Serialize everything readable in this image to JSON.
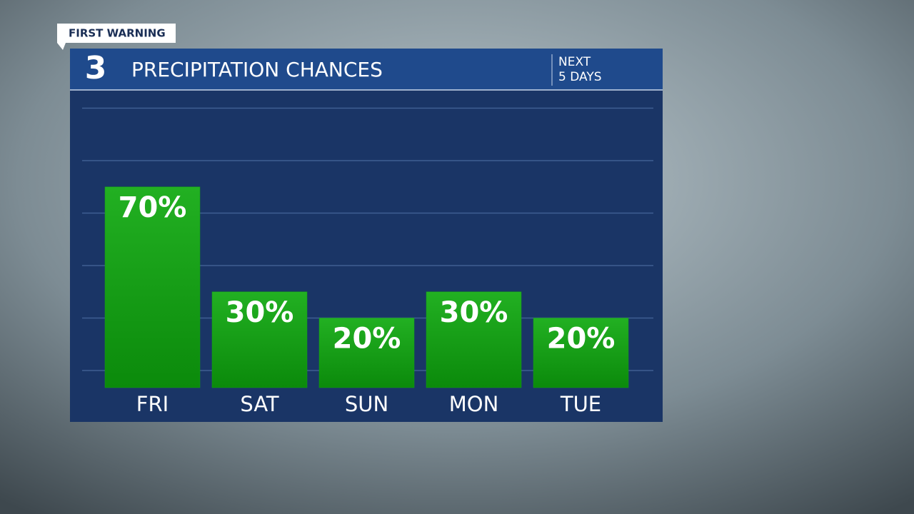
{
  "header": {
    "badge": "FIRST WARNING",
    "logo": "3",
    "tag": [
      "NEXT",
      "5 DAYS"
    ]
  },
  "chart_data": {
    "type": "bar",
    "title": "PRECIPITATION CHANCES",
    "categories": [
      "FRI",
      "SAT",
      "SUN",
      "MON",
      "TUE"
    ],
    "values": [
      70,
      30,
      20,
      30,
      20
    ],
    "value_labels": [
      "70%",
      "30%",
      "20%",
      "30%",
      "20%"
    ],
    "color": "#14a014",
    "ylim": [
      0,
      100
    ],
    "yticks": [
      0,
      20,
      40,
      60,
      80,
      100
    ],
    "grid": true
  }
}
